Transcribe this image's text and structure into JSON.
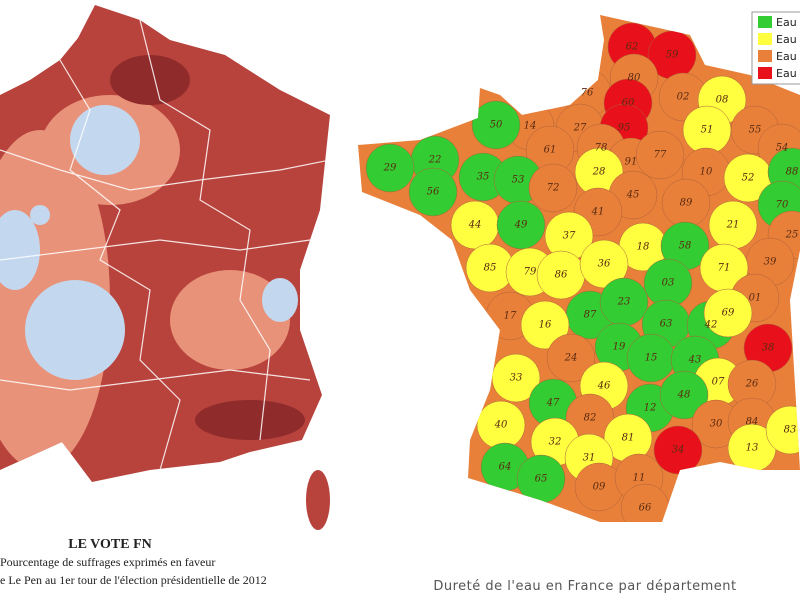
{
  "left_map": {
    "title": "LE VOTE FN",
    "caption_lines": [
      "Pourcentage de suffrages exprimés en faveur",
      "e Le Pen au 1er tour de l'élection présidentielle de 2012"
    ]
  },
  "right_map": {
    "caption": "Dureté de l'eau en France par département",
    "legend": [
      {
        "label": "Eau",
        "color": "#33cc33"
      },
      {
        "label": "Eau",
        "color": "#ffff40"
      },
      {
        "label": "Eau",
        "color": "#e8803a"
      },
      {
        "label": "Eau",
        "color": "#e8101a"
      }
    ],
    "departments": [
      {
        "label": "62",
        "color": "#e8101a"
      },
      {
        "label": "59",
        "color": "#e8101a"
      },
      {
        "label": "80",
        "color": "#e8803a"
      },
      {
        "label": "76",
        "color": "#e8803a"
      },
      {
        "label": "60",
        "color": "#e8101a"
      },
      {
        "label": "02",
        "color": "#e8803a"
      },
      {
        "label": "08",
        "color": "#ffff40"
      },
      {
        "label": "14",
        "color": "#e8803a"
      },
      {
        "label": "27",
        "color": "#e8803a"
      },
      {
        "label": "95",
        "color": "#e8101a"
      },
      {
        "label": "51",
        "color": "#ffff40"
      },
      {
        "label": "55",
        "color": "#e8803a"
      },
      {
        "label": "50",
        "color": "#33cc33"
      },
      {
        "label": "61",
        "color": "#e8803a"
      },
      {
        "label": "78",
        "color": "#e8803a"
      },
      {
        "label": "91",
        "color": "#e8803a"
      },
      {
        "label": "77",
        "color": "#e8803a"
      },
      {
        "label": "54",
        "color": "#e8803a"
      },
      {
        "label": "22",
        "color": "#33cc33"
      },
      {
        "label": "29",
        "color": "#33cc33"
      },
      {
        "label": "35",
        "color": "#33cc33"
      },
      {
        "label": "53",
        "color": "#33cc33"
      },
      {
        "label": "28",
        "color": "#ffff40"
      },
      {
        "label": "10",
        "color": "#e8803a"
      },
      {
        "label": "52",
        "color": "#ffff40"
      },
      {
        "label": "88",
        "color": "#33cc33"
      },
      {
        "label": "56",
        "color": "#33cc33"
      },
      {
        "label": "72",
        "color": "#e8803a"
      },
      {
        "label": "45",
        "color": "#e8803a"
      },
      {
        "label": "89",
        "color": "#e8803a"
      },
      {
        "label": "70",
        "color": "#33cc33"
      },
      {
        "label": "41",
        "color": "#e8803a"
      },
      {
        "label": "21",
        "color": "#ffff40"
      },
      {
        "label": "25",
        "color": "#e8803a"
      },
      {
        "label": "44",
        "color": "#ffff40"
      },
      {
        "label": "49",
        "color": "#33cc33"
      },
      {
        "label": "37",
        "color": "#ffff40"
      },
      {
        "label": "18",
        "color": "#ffff40"
      },
      {
        "label": "58",
        "color": "#33cc33"
      },
      {
        "label": "39",
        "color": "#e8803a"
      },
      {
        "label": "85",
        "color": "#ffff40"
      },
      {
        "label": "79",
        "color": "#ffff40"
      },
      {
        "label": "86",
        "color": "#ffff40"
      },
      {
        "label": "36",
        "color": "#ffff40"
      },
      {
        "label": "71",
        "color": "#ffff40"
      },
      {
        "label": "03",
        "color": "#33cc33"
      },
      {
        "label": "01",
        "color": "#e8803a"
      },
      {
        "label": "17",
        "color": "#e8803a"
      },
      {
        "label": "87",
        "color": "#33cc33"
      },
      {
        "label": "23",
        "color": "#33cc33"
      },
      {
        "label": "63",
        "color": "#33cc33"
      },
      {
        "label": "42",
        "color": "#33cc33"
      },
      {
        "label": "69",
        "color": "#ffff40"
      },
      {
        "label": "16",
        "color": "#ffff40"
      },
      {
        "label": "19",
        "color": "#33cc33"
      },
      {
        "label": "15",
        "color": "#33cc33"
      },
      {
        "label": "43",
        "color": "#33cc33"
      },
      {
        "label": "38",
        "color": "#e8101a"
      },
      {
        "label": "24",
        "color": "#e8803a"
      },
      {
        "label": "33",
        "color": "#ffff40"
      },
      {
        "label": "46",
        "color": "#ffff40"
      },
      {
        "label": "07",
        "color": "#ffff40"
      },
      {
        "label": "26",
        "color": "#e8803a"
      },
      {
        "label": "47",
        "color": "#33cc33"
      },
      {
        "label": "12",
        "color": "#33cc33"
      },
      {
        "label": "48",
        "color": "#33cc33"
      },
      {
        "label": "82",
        "color": "#e8803a"
      },
      {
        "label": "81",
        "color": "#ffff40"
      },
      {
        "label": "30",
        "color": "#e8803a"
      },
      {
        "label": "84",
        "color": "#e8803a"
      },
      {
        "label": "40",
        "color": "#ffff40"
      },
      {
        "label": "32",
        "color": "#ffff40"
      },
      {
        "label": "34",
        "color": "#e8101a"
      },
      {
        "label": "13",
        "color": "#ffff40"
      },
      {
        "label": "31",
        "color": "#ffff40"
      },
      {
        "label": "64",
        "color": "#33cc33"
      },
      {
        "label": "65",
        "color": "#33cc33"
      },
      {
        "label": "09",
        "color": "#e8803a"
      },
      {
        "label": "11",
        "color": "#e8803a"
      },
      {
        "label": "66",
        "color": "#e8803a"
      },
      {
        "label": "83",
        "color": "#ffff40"
      }
    ]
  }
}
